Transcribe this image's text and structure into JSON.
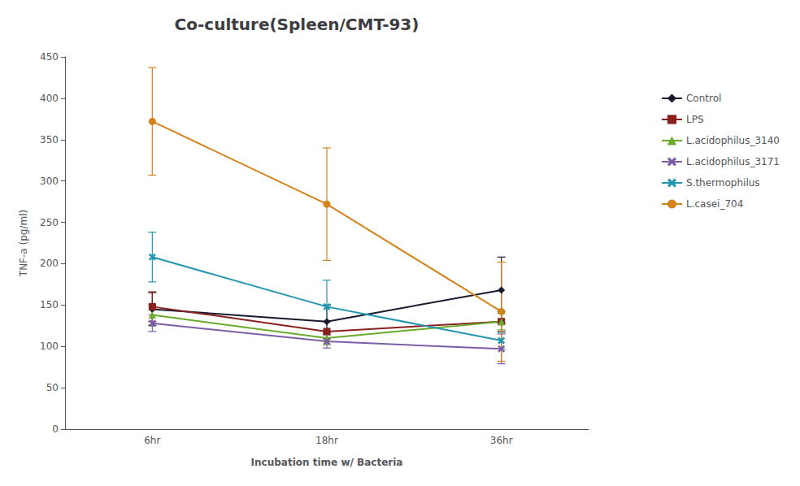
{
  "chart_data": {
    "type": "line",
    "title": "Co-culture(Spleen/CMT-93)",
    "xlabel": "Incubation time w/ Bacteria",
    "ylabel": "TNF-a (pg/ml)",
    "categories": [
      "6hr",
      "18hr",
      "36hr"
    ],
    "ylim": [
      0,
      450
    ],
    "yticks": [
      0,
      50,
      100,
      150,
      200,
      250,
      300,
      350,
      400,
      450
    ],
    "grid": false,
    "legend": "right",
    "series": [
      {
        "name": "Control",
        "color": "#1a1a2e",
        "marker": "diamond",
        "values": [
          145,
          130,
          168
        ],
        "yerr": [
          20,
          20,
          40
        ]
      },
      {
        "name": "LPS",
        "color": "#8b2020",
        "marker": "square",
        "values": [
          148,
          118,
          130
        ],
        "yerr": [
          18,
          12,
          12
        ]
      },
      {
        "name": "L.acidophilus_3140",
        "color": "#6aaa2a",
        "marker": "triangle",
        "values": [
          138,
          110,
          130
        ],
        "yerr": [
          12,
          8,
          10
        ]
      },
      {
        "name": "L.acidophilus_3171",
        "color": "#7b5ea7",
        "marker": "x",
        "values": [
          128,
          106,
          97
        ],
        "yerr": [
          10,
          8,
          18
        ]
      },
      {
        "name": "S.thermophilus",
        "color": "#2196b0",
        "marker": "x",
        "values": [
          208,
          148,
          107
        ],
        "yerr": [
          30,
          32,
          10
        ]
      },
      {
        "name": "L.casei_704",
        "color": "#d4821a",
        "marker": "circle",
        "values": [
          372,
          272,
          142
        ],
        "yerr": [
          65,
          68,
          60
        ]
      }
    ]
  }
}
